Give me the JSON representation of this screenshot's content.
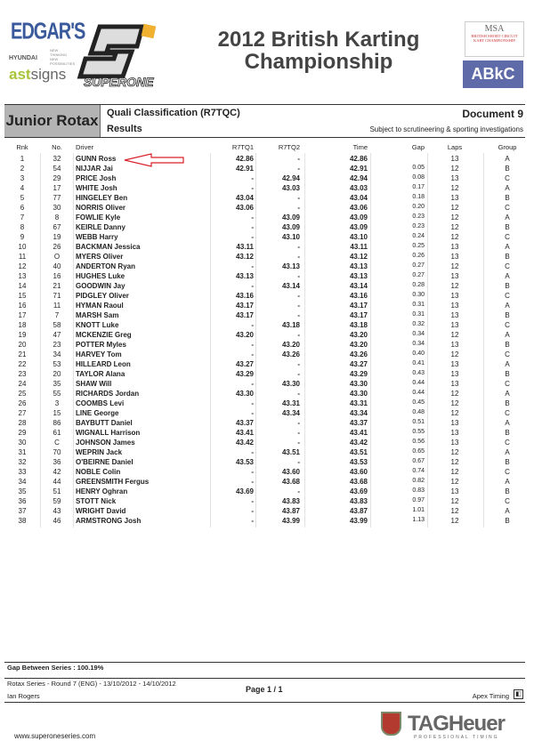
{
  "logos": {
    "edgars": "EDGAR'S",
    "hyundai": "HYUNDAI",
    "hyundai_tag": "NEW THINKING NEW POSSIBILITIES",
    "astsigns_a": "ast",
    "astsigns_b": "signs",
    "superone": "SUPERONE",
    "msa": "MSA",
    "msa_sub": "BRITISH SHORT CIRCUIT KART CHAMPIONSHIP",
    "abkc": "ABkC",
    "tagheuer": "TAGHeuer",
    "tagheuer_sub": "PROFESSIONAL TIMING"
  },
  "header": {
    "title_line1": "2012 British Karting",
    "title_line2": "Championship",
    "category": "Junior Rotax",
    "session": "Quali Classification (R7TQC)",
    "results": "Results",
    "document": "Document 9",
    "subject": "Subject to scrutineering & sporting investigations"
  },
  "table": {
    "columns": [
      "Rnk",
      "No.",
      "Driver",
      "R7TQ1",
      "R7TQ2",
      "Time",
      "Gap",
      "Laps",
      "Group"
    ],
    "highlight_color": "#d9222a",
    "rows": [
      [
        "1",
        "32",
        "GUNN Ross",
        "42.86",
        "-",
        "42.86",
        "",
        "13",
        "A"
      ],
      [
        "2",
        "54",
        "NIJJAR Jai",
        "42.91",
        "-",
        "42.91",
        "0.05",
        "12",
        "B"
      ],
      [
        "3",
        "29",
        "PRICE Josh",
        "-",
        "42.94",
        "42.94",
        "0.08",
        "13",
        "C"
      ],
      [
        "4",
        "17",
        "WHITE Josh",
        "-",
        "43.03",
        "43.03",
        "0.17",
        "12",
        "A"
      ],
      [
        "5",
        "77",
        "HINGELEY Ben",
        "43.04",
        "-",
        "43.04",
        "0.18",
        "13",
        "B"
      ],
      [
        "6",
        "30",
        "NORRIS Oliver",
        "43.06",
        "-",
        "43.06",
        "0.20",
        "12",
        "C"
      ],
      [
        "7",
        "8",
        "FOWLIE Kyle",
        "-",
        "43.09",
        "43.09",
        "0.23",
        "12",
        "A"
      ],
      [
        "8",
        "67",
        "KEIRLE Danny",
        "-",
        "43.09",
        "43.09",
        "0.23",
        "12",
        "B"
      ],
      [
        "9",
        "19",
        "WEBB Harry",
        "-",
        "43.10",
        "43.10",
        "0.24",
        "12",
        "C"
      ],
      [
        "10",
        "26",
        "BACKMAN Jessica",
        "43.11",
        "-",
        "43.11",
        "0.25",
        "13",
        "A"
      ],
      [
        "11",
        "O",
        "MYERS Oliver",
        "43.12",
        "-",
        "43.12",
        "0.26",
        "13",
        "B"
      ],
      [
        "12",
        "40",
        "ANDERTON Ryan",
        "-",
        "43.13",
        "43.13",
        "0.27",
        "12",
        "C"
      ],
      [
        "13",
        "16",
        "HUGHES Luke",
        "43.13",
        "-",
        "43.13",
        "0.27",
        "13",
        "A"
      ],
      [
        "14",
        "21",
        "GOODWIN Jay",
        "-",
        "43.14",
        "43.14",
        "0.28",
        "12",
        "B"
      ],
      [
        "15",
        "71",
        "PIDGLEY Oliver",
        "43.16",
        "-",
        "43.16",
        "0.30",
        "13",
        "C"
      ],
      [
        "16",
        "11",
        "HYMAN Raoul",
        "43.17",
        "-",
        "43.17",
        "0.31",
        "13",
        "A"
      ],
      [
        "17",
        "7",
        "MARSH Sam",
        "43.17",
        "-",
        "43.17",
        "0.31",
        "13",
        "B"
      ],
      [
        "18",
        "58",
        "KNOTT Luke",
        "-",
        "43.18",
        "43.18",
        "0.32",
        "13",
        "C"
      ],
      [
        "19",
        "47",
        "MCKENZIE Greg",
        "43.20",
        "-",
        "43.20",
        "0.34",
        "12",
        "A"
      ],
      [
        "20",
        "23",
        "POTTER Myles",
        "-",
        "43.20",
        "43.20",
        "0.34",
        "13",
        "B"
      ],
      [
        "21",
        "34",
        "HARVEY Tom",
        "-",
        "43.26",
        "43.26",
        "0.40",
        "12",
        "C"
      ],
      [
        "22",
        "53",
        "HILLEARD Leon",
        "43.27",
        "-",
        "43.27",
        "0.41",
        "13",
        "A"
      ],
      [
        "23",
        "20",
        "TAYLOR Alana",
        "43.29",
        "-",
        "43.29",
        "0.43",
        "13",
        "B"
      ],
      [
        "24",
        "35",
        "SHAW Will",
        "-",
        "43.30",
        "43.30",
        "0.44",
        "13",
        "C"
      ],
      [
        "25",
        "55",
        "RICHARDS Jordan",
        "43.30",
        "-",
        "43.30",
        "0.44",
        "12",
        "A"
      ],
      [
        "26",
        "3",
        "COOMBS Levi",
        "-",
        "43.31",
        "43.31",
        "0.45",
        "12",
        "B"
      ],
      [
        "27",
        "15",
        "LINE George",
        "-",
        "43.34",
        "43.34",
        "0.48",
        "12",
        "C"
      ],
      [
        "28",
        "86",
        "BAYBUTT Daniel",
        "43.37",
        "-",
        "43.37",
        "0.51",
        "13",
        "A"
      ],
      [
        "29",
        "61",
        "WIGNALL Harrison",
        "43.41",
        "-",
        "43.41",
        "0.55",
        "13",
        "B"
      ],
      [
        "30",
        "C",
        "JOHNSON James",
        "43.42",
        "-",
        "43.42",
        "0.56",
        "13",
        "C"
      ],
      [
        "31",
        "70",
        "WEPRIN Jack",
        "-",
        "43.51",
        "43.51",
        "0.65",
        "12",
        "A"
      ],
      [
        "32",
        "36",
        "O'BEIRNE Daniel",
        "43.53",
        "-",
        "43.53",
        "0.67",
        "12",
        "B"
      ],
      [
        "33",
        "42",
        "NOBLE Colin",
        "-",
        "43.60",
        "43.60",
        "0.74",
        "12",
        "C"
      ],
      [
        "34",
        "44",
        "GREENSMITH Fergus",
        "-",
        "43.68",
        "43.68",
        "0.82",
        "12",
        "A"
      ],
      [
        "35",
        "51",
        "HENRY Oghran",
        "43.69",
        "-",
        "43.69",
        "0.83",
        "13",
        "B"
      ],
      [
        "36",
        "59",
        "STOTT Nick",
        "-",
        "43.83",
        "43.83",
        "0.97",
        "12",
        "C"
      ],
      [
        "37",
        "43",
        "WRIGHT David",
        "-",
        "43.87",
        "43.87",
        "1.01",
        "12",
        "A"
      ],
      [
        "38",
        "46",
        "ARMSTRONG Josh",
        "-",
        "43.99",
        "43.99",
        "1.13",
        "12",
        "B"
      ]
    ]
  },
  "footer": {
    "gap_between": "Gap Between Series : 100.19%",
    "event": "Rotax Series - Round 7 (ENG) - 13/10/2012 - 14/10/2012",
    "official": "Ian Rogers",
    "page": "Page 1 / 1",
    "timing": "Apex Timing",
    "website": "www.superoneseries.com"
  }
}
